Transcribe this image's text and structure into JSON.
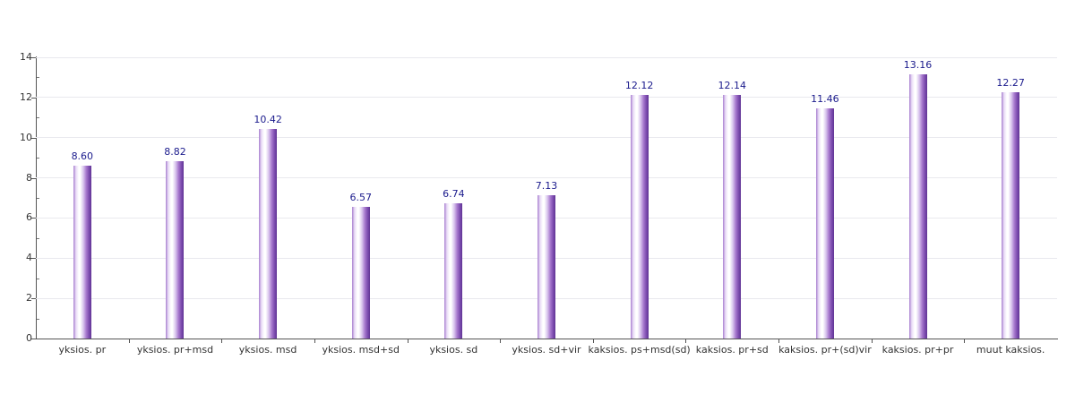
{
  "chart": {
    "background_color": "#ffffff",
    "axis_color": "#555555",
    "grid_color": "#e9e9ee",
    "tick_label_color": "#333333",
    "category_label_color": "#333333",
    "value_label_color": "#1a1a8c",
    "bar_gradient_stops": [
      "#a87fd0",
      "#e9dcf6",
      "#ffffff",
      "#d9c5ee",
      "#a678cd",
      "#7a4aad",
      "#603494"
    ]
  },
  "chart_data": {
    "type": "bar",
    "title": "",
    "xlabel": "",
    "ylabel": "",
    "categories": [
      "yksios. pr",
      "yksios. pr+msd",
      "yksios. msd",
      "yksios. msd+sd",
      "yksios. sd",
      "yksios. sd+vir",
      "kaksios. ps+msd(sd)",
      "kaksios. pr+sd",
      "kaksios. pr+(sd)vir",
      "kaksios. pr+pr",
      "muut kaksios."
    ],
    "values": [
      8.6,
      8.82,
      10.42,
      6.57,
      6.74,
      7.13,
      12.12,
      12.14,
      11.46,
      13.16,
      12.27
    ],
    "value_labels": [
      "8.60",
      "8.82",
      "10.42",
      "6.57",
      "6.74",
      "7.13",
      "12.12",
      "12.14",
      "11.46",
      "13.16",
      "12.27"
    ],
    "ylim": [
      0,
      14
    ],
    "yticks": [
      0,
      2,
      4,
      6,
      8,
      10,
      12,
      14
    ],
    "minor_yticks": [
      1,
      3,
      5,
      7,
      9,
      11,
      13
    ],
    "grid": "horizontal-major",
    "legend": "none"
  }
}
